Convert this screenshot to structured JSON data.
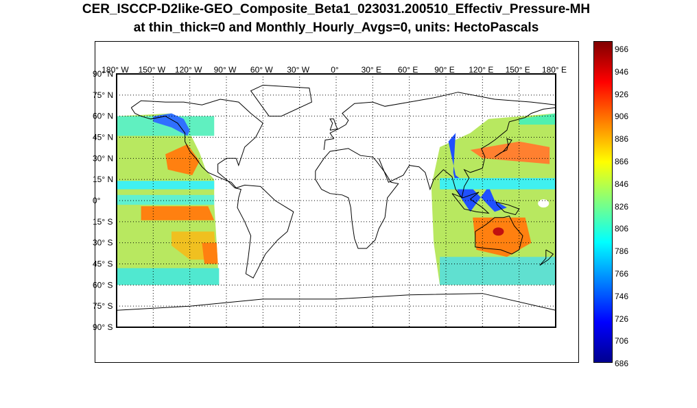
{
  "title": {
    "line1": "CER_ISCCP-D2like-GEO_Composite_Beta1_023031.200510_Effectiv_Pressure-MH",
    "line2": "at thin_thick=0 and Monthly_Hourly_Avgs=0, units: HectoPascals"
  },
  "map": {
    "lon_ticks": [
      "180° W",
      "150° W",
      "120° W",
      "90° W",
      "60° W",
      "30° W",
      "0°",
      "30° E",
      "60° E",
      "90° E",
      "120° E",
      "150° E",
      "180° E"
    ],
    "lat_ticks": [
      "90° N",
      "75° N",
      "60° N",
      "45° N",
      "30° N",
      "15° N",
      "0°",
      "15° S",
      "30° S",
      "45° S",
      "60° S",
      "75° S",
      "90° S"
    ],
    "grid": "dotted",
    "coverage": [
      {
        "name": "east-pacific-geo",
        "lon_range": [
          -180,
          -100
        ],
        "lat_range": [
          -60,
          60
        ]
      },
      {
        "name": "west-pacific-geo",
        "lon_range": [
          80,
          180
        ],
        "lat_range": [
          -60,
          60
        ]
      }
    ]
  },
  "colorbar": {
    "colormap": "jet",
    "min": 686,
    "max": 976,
    "labels": [
      "966",
      "946",
      "926",
      "906",
      "886",
      "866",
      "846",
      "826",
      "806",
      "786",
      "766",
      "746",
      "726",
      "706",
      "686"
    ],
    "colors": [
      "#00008f",
      "#0000ff",
      "#0080ff",
      "#00ffff",
      "#80ff80",
      "#ffff00",
      "#ff8000",
      "#ff0000",
      "#800000"
    ]
  }
}
